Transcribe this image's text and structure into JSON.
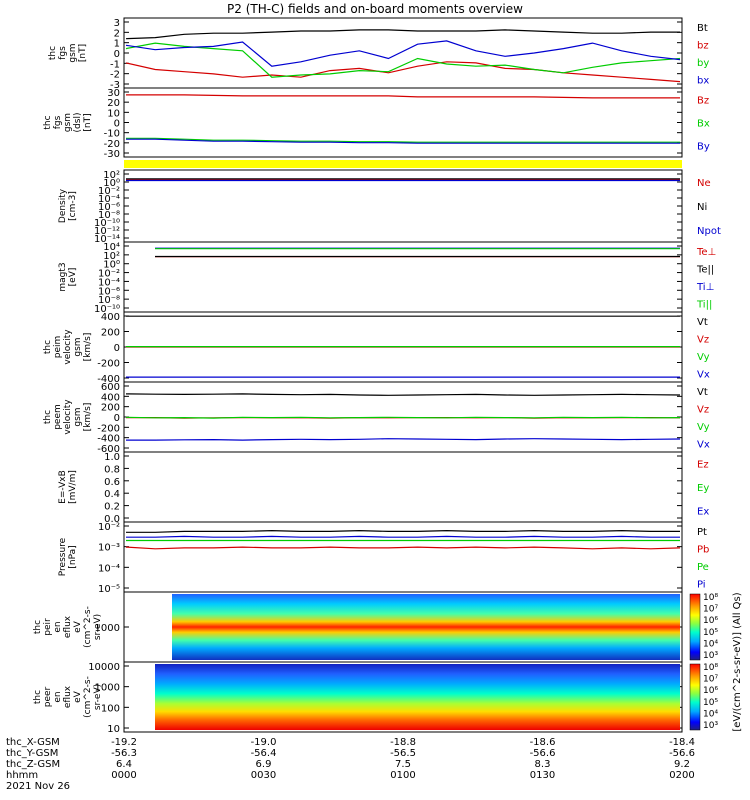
{
  "title": "P2 (TH-C) fields and on-board moments overview",
  "colors": {
    "black": "#000000",
    "red": "#d40000",
    "green": "#00cc00",
    "blue": "#0000d0",
    "yellow": "#ffff00"
  },
  "chart_data": [
    {
      "type": "line",
      "ylabel": [
        "thc",
        "fgs",
        "gsm",
        "[nT]"
      ],
      "yticks": [
        "3",
        "2",
        "1",
        "0",
        "-1",
        "-2",
        "-3"
      ],
      "ylim": [
        -3,
        3
      ],
      "legend": [
        {
          "name": "Bt",
          "color": "black"
        },
        {
          "name": "bz",
          "color": "red"
        },
        {
          "name": "by",
          "color": "green"
        },
        {
          "name": "bx",
          "color": "blue"
        }
      ],
      "series": [
        {
          "name": "Bt",
          "color": "black",
          "values": [
            1.3,
            1.4,
            1.7,
            1.8,
            1.8,
            1.9,
            2.0,
            2.0,
            2.1,
            2.1,
            2.0,
            2.0,
            2.0,
            2.1,
            2.0,
            1.9,
            1.8,
            1.8,
            1.9,
            1.9
          ]
        },
        {
          "name": "bz",
          "color": "red",
          "values": [
            -0.9,
            -1.5,
            -1.7,
            -1.9,
            -2.2,
            -2.0,
            -2.2,
            -1.6,
            -1.4,
            -1.8,
            -1.2,
            -0.8,
            -0.9,
            -1.4,
            -1.5,
            -1.8,
            -2.0,
            -2.2,
            -2.4,
            -2.6
          ]
        },
        {
          "name": "by",
          "color": "green",
          "values": [
            0.4,
            0.9,
            0.6,
            0.4,
            0.2,
            -2.2,
            -2.0,
            -1.9,
            -1.6,
            -1.7,
            -0.5,
            -1.0,
            -1.2,
            -1.1,
            -1.5,
            -1.8,
            -1.3,
            -0.9,
            -0.7,
            -0.5
          ]
        },
        {
          "name": "bx",
          "color": "blue",
          "values": [
            0.7,
            0.3,
            0.5,
            0.6,
            1.0,
            -1.2,
            -0.8,
            -0.2,
            0.2,
            -0.5,
            0.8,
            1.1,
            0.2,
            -0.3,
            0.0,
            0.4,
            0.9,
            0.2,
            -0.3,
            -0.6
          ]
        }
      ]
    },
    {
      "type": "line",
      "ylabel": [
        "thc",
        "fgs",
        "gsm",
        "(dsl)",
        "[nT]"
      ],
      "yticks": [
        "30",
        "20",
        "10",
        "0",
        "-10",
        "-20",
        "-30"
      ],
      "ylim": [
        -33,
        33
      ],
      "legend": [
        {
          "name": "Bz",
          "color": "red"
        },
        {
          "name": "Bx",
          "color": "green"
        },
        {
          "name": "By",
          "color": "blue"
        }
      ],
      "series": [
        {
          "name": "Bz",
          "color": "red",
          "values": [
            28,
            28,
            28,
            27.5,
            27,
            27,
            27,
            27,
            27,
            27,
            26,
            26,
            26,
            26,
            26,
            25.5,
            25,
            25,
            25,
            25
          ]
        },
        {
          "name": "Bx",
          "color": "green",
          "values": [
            -16,
            -16,
            -17,
            -18,
            -18,
            -18.5,
            -19,
            -19,
            -19.5,
            -19.5,
            -20,
            -20,
            -20,
            -20,
            -20,
            -20,
            -20,
            -20,
            -20,
            -20
          ]
        },
        {
          "name": "By",
          "color": "blue",
          "values": [
            -17,
            -17,
            -18,
            -19,
            -19,
            -19.5,
            -20,
            -20,
            -20.5,
            -20.5,
            -21,
            -21,
            -21,
            -21,
            -21,
            -21,
            -21,
            -21,
            -21,
            -21
          ]
        }
      ]
    },
    {
      "type": "line",
      "ylabel": [
        "Density",
        "[cm-3]"
      ],
      "yticks": [
        "10^2",
        "10^0",
        "10^-2",
        "10^-4",
        "10^-6",
        "10^-8",
        "10^-10",
        "10^-12",
        "10^-14"
      ],
      "ylim": [
        -14,
        2
      ],
      "log": true,
      "legend": [
        {
          "name": "Ne",
          "color": "red"
        },
        {
          "name": "Ni",
          "color": "black"
        },
        {
          "name": "Npot",
          "color": "blue"
        }
      ],
      "series": [
        {
          "name": "Ne",
          "color": "red",
          "values": [
            0.2,
            0.2,
            0.2,
            0.2,
            0.2,
            0.2,
            0.2,
            0.2,
            0.2,
            0.2,
            0.2,
            0.2,
            0.2,
            0.2,
            0.2,
            0.2,
            0.2,
            0.2,
            0.2,
            0.2
          ]
        },
        {
          "name": "Ni",
          "color": "black",
          "values": [
            0.4,
            0.4,
            0.4,
            0.4,
            0.4,
            0.4,
            0.4,
            0.4,
            0.4,
            0.4,
            0.4,
            0.4,
            0.4,
            0.4,
            0.4,
            0.4,
            0.4,
            0.4,
            0.4,
            0.4
          ]
        },
        {
          "name": "Npot",
          "color": "blue",
          "values": [
            0.0,
            0.0,
            0.0,
            0.0,
            0.0,
            0.0,
            0.0,
            0.0,
            0.0,
            0.0,
            0.0,
            0.0,
            0.0,
            0.0,
            0.0,
            0.0,
            0.0,
            0.0,
            0.0,
            0.0
          ]
        }
      ]
    },
    {
      "type": "line",
      "ylabel": [
        "magt3",
        "[eV]"
      ],
      "yticks": [
        "10^4",
        "10^2",
        "10^0",
        "10^-2",
        "10^-4",
        "10^-6",
        "10^-8",
        "10^-10"
      ],
      "ylim": [
        -10,
        4
      ],
      "log": true,
      "legend": [
        {
          "name": "Te⊥",
          "color": "red"
        },
        {
          "name": "Te||",
          "color": "black"
        },
        {
          "name": "Ti⊥",
          "color": "blue"
        },
        {
          "name": "Ti||",
          "color": "green"
        }
      ],
      "series": [
        {
          "name": "Te⊥",
          "color": "red",
          "values": [
            1.3,
            1.3,
            1.3,
            1.3,
            1.3,
            1.3,
            1.3,
            1.3,
            1.3,
            1.3,
            1.3,
            1.3,
            1.3,
            1.3,
            1.3,
            1.3,
            1.3,
            1.3,
            1.3,
            1.3
          ]
        },
        {
          "name": "Te||",
          "color": "black",
          "values": [
            1.35,
            1.35,
            1.35,
            1.35,
            1.35,
            1.35,
            1.35,
            1.35,
            1.35,
            1.35,
            1.35,
            1.35,
            1.35,
            1.35,
            1.35,
            1.35,
            1.35,
            1.35,
            1.35,
            1.35
          ]
        },
        {
          "name": "Ti⊥",
          "color": "blue",
          "values": [
            3.1,
            3.1,
            3.1,
            3.1,
            3.1,
            3.1,
            3.1,
            3.1,
            3.1,
            3.1,
            3.1,
            3.1,
            3.1,
            3.1,
            3.1,
            3.1,
            3.1,
            3.1,
            3.1,
            3.1
          ]
        },
        {
          "name": "Ti||",
          "color": "green",
          "values": [
            3.0,
            3.0,
            3.0,
            3.0,
            3.0,
            3.0,
            3.0,
            3.0,
            3.0,
            3.0,
            3.0,
            3.0,
            3.0,
            3.0,
            3.0,
            3.0,
            3.0,
            3.0,
            3.0,
            3.0
          ]
        }
      ]
    },
    {
      "type": "line",
      "ylabel": [
        "thc",
        "peim",
        "velocity",
        "gsm",
        "[km/s]"
      ],
      "yticks": [
        "400",
        "200",
        "0",
        "-200",
        "-400"
      ],
      "ylim": [
        -450,
        450
      ],
      "legend": [
        {
          "name": "Vt",
          "color": "black"
        },
        {
          "name": "Vz",
          "color": "red"
        },
        {
          "name": "Vy",
          "color": "green"
        },
        {
          "name": "Vx",
          "color": "blue"
        }
      ],
      "series": [
        {
          "name": "Vt",
          "color": "black",
          "values": [
            420,
            420,
            420,
            420,
            420,
            420,
            420,
            420,
            420,
            420,
            420,
            420,
            420,
            420,
            420,
            420,
            420,
            420,
            420,
            420
          ]
        },
        {
          "name": "Vz",
          "color": "red",
          "values": [
            0,
            0,
            0,
            0,
            0,
            0,
            0,
            0,
            0,
            0,
            0,
            0,
            0,
            0,
            0,
            0,
            0,
            0,
            0,
            0
          ]
        },
        {
          "name": "Vy",
          "color": "green",
          "values": [
            5,
            5,
            5,
            5,
            5,
            5,
            5,
            5,
            5,
            5,
            5,
            5,
            5,
            5,
            5,
            5,
            5,
            5,
            5,
            5
          ]
        },
        {
          "name": "Vx",
          "color": "blue",
          "values": [
            -410,
            -410,
            -410,
            -410,
            -410,
            -410,
            -410,
            -410,
            -410,
            -410,
            -410,
            -410,
            -410,
            -410,
            -410,
            -410,
            -410,
            -410,
            -410,
            -410
          ]
        }
      ]
    },
    {
      "type": "line",
      "ylabel": [
        "thc",
        "peem",
        "velocity",
        "gsm",
        "[km/s]"
      ],
      "yticks": [
        "600",
        "400",
        "200",
        "0",
        "-200",
        "-400",
        "-600"
      ],
      "ylim": [
        -600,
        600
      ],
      "legend": [
        {
          "name": "Vt",
          "color": "black"
        },
        {
          "name": "Vz",
          "color": "red"
        },
        {
          "name": "Vy",
          "color": "green"
        },
        {
          "name": "Vx",
          "color": "blue"
        }
      ],
      "series": [
        {
          "name": "Vt",
          "color": "black",
          "values": [
            420,
            415,
            410,
            415,
            420,
            410,
            405,
            410,
            400,
            395,
            400,
            405,
            410,
            400,
            395,
            400,
            405,
            410,
            405,
            400
          ]
        },
        {
          "name": "Vz",
          "color": "red",
          "values": [
            -10,
            -10,
            -20,
            -15,
            -10,
            -15,
            -10,
            -20,
            -10,
            -15,
            -10,
            -10,
            -15,
            -10,
            -20,
            -10,
            -15,
            -10,
            -10,
            -15
          ]
        },
        {
          "name": "Vy",
          "color": "green",
          "values": [
            -5,
            -15,
            -10,
            -20,
            -5,
            -10,
            -5,
            -15,
            -10,
            -5,
            -10,
            -15,
            -5,
            -10,
            -15,
            -5,
            -10,
            -5,
            -15,
            -10
          ]
        },
        {
          "name": "Vx",
          "color": "blue",
          "values": [
            -420,
            -420,
            -415,
            -410,
            -420,
            -410,
            -405,
            -410,
            -405,
            -395,
            -400,
            -405,
            -410,
            -400,
            -395,
            -400,
            -405,
            -410,
            -405,
            -400
          ]
        }
      ]
    },
    {
      "type": "line",
      "ylabel": [
        "E=-VxB",
        "[mV/m]"
      ],
      "yticks": [
        "1.0",
        "0.8",
        "0.6",
        "0.4",
        "0.2",
        "0.0"
      ],
      "ylim": [
        0,
        1
      ],
      "legend": [
        {
          "name": "Ez",
          "color": "red"
        },
        {
          "name": "Ey",
          "color": "green"
        },
        {
          "name": "Ex",
          "color": "blue"
        }
      ],
      "series": []
    },
    {
      "type": "line",
      "ylabel": [
        "Pressure",
        "[nPa]"
      ],
      "yticks": [
        "10^-2",
        "10^-3",
        "10^-4",
        "10^-5"
      ],
      "ylim": [
        -5.5,
        -1.5
      ],
      "log": true,
      "legend": [
        {
          "name": "Pt",
          "color": "black"
        },
        {
          "name": "Pb",
          "color": "red"
        },
        {
          "name": "Pe",
          "color": "green"
        },
        {
          "name": "Pi",
          "color": "blue"
        }
      ],
      "series": [
        {
          "name": "Pt",
          "color": "black",
          "values": [
            -2.0,
            -2.0,
            -1.95,
            -1.95,
            -1.95,
            -1.9,
            -1.95,
            -1.95,
            -1.9,
            -1.95,
            -1.95,
            -1.9,
            -1.95,
            -1.95,
            -1.9,
            -1.95,
            -1.95,
            -1.9,
            -1.95,
            -1.95
          ]
        },
        {
          "name": "Pb",
          "color": "red",
          "values": [
            -2.9,
            -3.0,
            -2.95,
            -2.95,
            -2.9,
            -2.95,
            -2.95,
            -2.9,
            -2.95,
            -2.95,
            -2.9,
            -2.95,
            -2.9,
            -2.95,
            -2.9,
            -2.95,
            -3.0,
            -2.95,
            -3.0,
            -2.95
          ]
        },
        {
          "name": "Pe",
          "color": "green",
          "values": [
            -2.5,
            -2.5,
            -2.5,
            -2.5,
            -2.5,
            -2.5,
            -2.5,
            -2.5,
            -2.5,
            -2.5,
            -2.5,
            -2.5,
            -2.5,
            -2.5,
            -2.5,
            -2.5,
            -2.5,
            -2.5,
            -2.5,
            -2.5
          ]
        },
        {
          "name": "Pi",
          "color": "blue",
          "values": [
            -2.3,
            -2.3,
            -2.25,
            -2.3,
            -2.3,
            -2.25,
            -2.3,
            -2.3,
            -2.25,
            -2.3,
            -2.3,
            -2.25,
            -2.3,
            -2.3,
            -2.25,
            -2.3,
            -2.3,
            -2.25,
            -2.3,
            -2.3
          ]
        }
      ]
    },
    {
      "type": "heatmap",
      "ylabel": [
        "thc",
        "peir",
        "en",
        "eflux",
        "eV",
        "(cm^2-s-",
        "sr-eV)"
      ],
      "yticks": [
        "1000"
      ],
      "colorbar": [
        "10^8",
        "10^7",
        "10^6",
        "10^5",
        "10^4",
        "10^3"
      ]
    },
    {
      "type": "heatmap",
      "ylabel": [
        "thc",
        "peer",
        "en",
        "eflux",
        "eV",
        "(cm^2-s-",
        "sr-eV)"
      ],
      "yticks": [
        "10000",
        "1000",
        "100",
        "10"
      ],
      "colorbar": [
        "10^8",
        "10^7",
        "10^6",
        "10^5",
        "10^4",
        "10^3"
      ]
    }
  ],
  "colorbar_label": "[eV/(cm^2-s-sr-eV)] (All Qs)",
  "xaxis": {
    "rows": [
      {
        "label": "thc_X-GSM",
        "values": [
          "-19.2",
          "-19.0",
          "-18.8",
          "-18.6",
          "-18.4"
        ]
      },
      {
        "label": "thc_Y-GSM",
        "values": [
          "-56.3",
          "-56.4",
          "-56.5",
          "-56.6",
          "-56.6"
        ]
      },
      {
        "label": "thc_Z-GSM",
        "values": [
          "6.4",
          "6.9",
          "7.5",
          "8.3",
          "9.2"
        ]
      },
      {
        "label": "hhmm",
        "values": [
          "0000",
          "0030",
          "0100",
          "0130",
          "0200"
        ]
      }
    ],
    "date": "2021 Nov 26"
  }
}
